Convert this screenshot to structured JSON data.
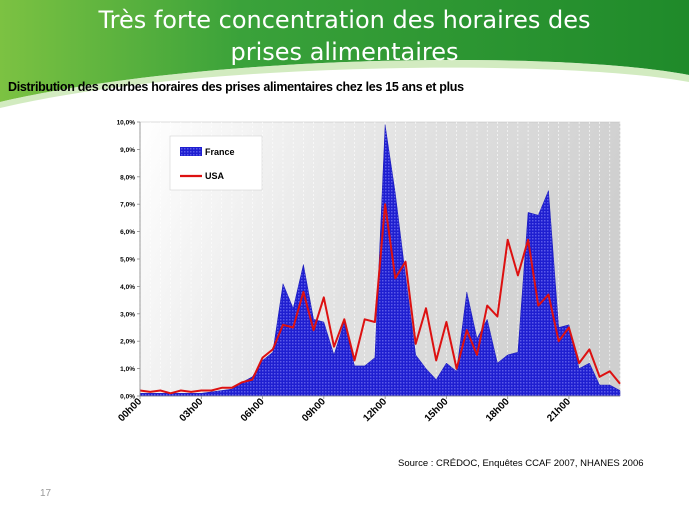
{
  "slide": {
    "title": "Très forte concentration des horaires des prises alimentaires",
    "subtitle": "Distribution des courbes horaires des prises alimentaires chez les 15 ans et plus",
    "source": "Source : CRÉDOC, Enquêtes CCAF 2007, NHANES 2006",
    "page_number": "17"
  },
  "colors": {
    "banner_green": "#3fa535",
    "france": "#1f1fd0",
    "usa": "#dd1111"
  },
  "chart_data": {
    "type": "area",
    "ylim": [
      0,
      10
    ],
    "y_ticks": [
      "0,0%",
      "1,0%",
      "2,0%",
      "3,0%",
      "4,0%",
      "5,0%",
      "6,0%",
      "7,0%",
      "8,0%",
      "9,0%",
      "10,0%"
    ],
    "x_ticks": [
      {
        "label": "00h00",
        "at": 0
      },
      {
        "label": "03h00",
        "at": 6
      },
      {
        "label": "06h00",
        "at": 12
      },
      {
        "label": "09h00",
        "at": 18
      },
      {
        "label": "12h00",
        "at": 24
      },
      {
        "label": "15h00",
        "at": 30
      },
      {
        "label": "18h00",
        "at": 36
      },
      {
        "label": "21h00",
        "at": 42
      }
    ],
    "series": [
      {
        "name": "France",
        "style": "area",
        "values": [
          0.1,
          0.1,
          0.1,
          0.1,
          0.1,
          0.1,
          0.1,
          0.15,
          0.2,
          0.25,
          0.5,
          0.7,
          1.3,
          1.6,
          4.1,
          3.2,
          4.8,
          2.8,
          2.7,
          1.5,
          2.7,
          1.1,
          1.1,
          1.4,
          9.9,
          7.4,
          4.4,
          1.5,
          1.0,
          0.6,
          1.2,
          0.9,
          3.8,
          2.1,
          2.8,
          1.2,
          1.5,
          1.6,
          6.7,
          6.6,
          7.5,
          2.5,
          2.6,
          1.0,
          1.2,
          0.4,
          0.4,
          0.2
        ]
      },
      {
        "name": "USA",
        "style": "line",
        "values": [
          0.2,
          0.15,
          0.2,
          0.1,
          0.2,
          0.15,
          0.2,
          0.2,
          0.3,
          0.3,
          0.5,
          0.6,
          1.4,
          1.7,
          2.6,
          2.5,
          3.8,
          2.4,
          3.6,
          1.8,
          2.8,
          1.3,
          2.8,
          2.7,
          7.0,
          4.3,
          4.9,
          1.9,
          3.2,
          1.3,
          2.7,
          1.0,
          2.4,
          1.5,
          3.3,
          2.9,
          5.7,
          4.4,
          5.7,
          3.3,
          3.7,
          2.0,
          2.5,
          1.2,
          1.7,
          0.7,
          0.9,
          0.45
        ]
      }
    ]
  }
}
